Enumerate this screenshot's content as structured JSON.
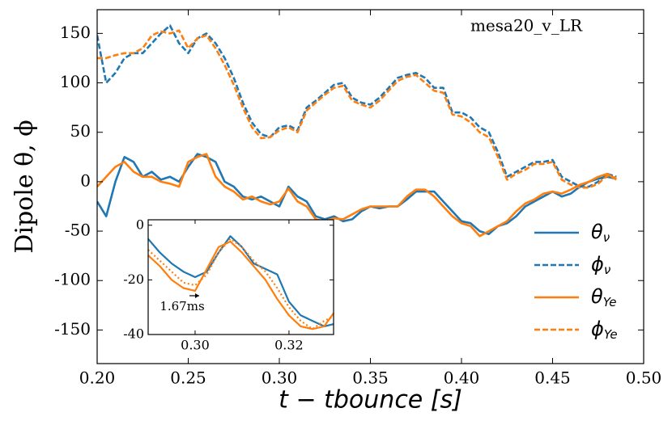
{
  "chart_data": [
    {
      "type": "line",
      "annotation": "mesa20_v_LR",
      "xlabel": "t − tbounce [s]",
      "ylabel": "Dipole θ, ϕ",
      "xlim": [
        0.2,
        0.5
      ],
      "ylim": [
        -184,
        174
      ],
      "xticks": [
        {
          "value": 0.2,
          "label": "0.20"
        },
        {
          "value": 0.25,
          "label": "0.25"
        },
        {
          "value": 0.3,
          "label": "0.30"
        },
        {
          "value": 0.35,
          "label": "0.35"
        },
        {
          "value": 0.4,
          "label": "0.40"
        },
        {
          "value": 0.45,
          "label": "0.45"
        },
        {
          "value": 0.5,
          "label": "0.50"
        }
      ],
      "yticks": [
        -150,
        -100,
        -50,
        0,
        50,
        100,
        150
      ],
      "legend": "lower right",
      "x": [
        0.2,
        0.205,
        0.21,
        0.215,
        0.22,
        0.225,
        0.23,
        0.235,
        0.24,
        0.245,
        0.25,
        0.255,
        0.26,
        0.265,
        0.27,
        0.275,
        0.28,
        0.285,
        0.29,
        0.295,
        0.3,
        0.305,
        0.31,
        0.315,
        0.32,
        0.325,
        0.33,
        0.335,
        0.34,
        0.345,
        0.35,
        0.355,
        0.36,
        0.365,
        0.37,
        0.375,
        0.38,
        0.385,
        0.39,
        0.395,
        0.4,
        0.405,
        0.41,
        0.415,
        0.42,
        0.425,
        0.43,
        0.435,
        0.44,
        0.445,
        0.45,
        0.455,
        0.46,
        0.465,
        0.47,
        0.475,
        0.48,
        0.485
      ],
      "series": [
        {
          "name": "θν",
          "color": "#1f77b4",
          "style": "solid",
          "values": [
            -20,
            -35,
            0,
            25,
            20,
            5,
            10,
            2,
            5,
            0,
            15,
            28,
            25,
            20,
            0,
            -5,
            -15,
            -18,
            -15,
            -20,
            -25,
            -5,
            -15,
            -20,
            -35,
            -38,
            -35,
            -40,
            -38,
            -30,
            -25,
            -27,
            -25,
            -25,
            -18,
            -10,
            -10,
            -10,
            -20,
            -30,
            -40,
            -42,
            -50,
            -53,
            -45,
            -42,
            -35,
            -25,
            -20,
            -15,
            -10,
            -15,
            -12,
            -5,
            0,
            3,
            5,
            3
          ]
        },
        {
          "name": "ϕν",
          "color": "#1f77b4",
          "style": "dashed",
          "values": [
            148,
            100,
            110,
            125,
            130,
            130,
            140,
            150,
            158,
            140,
            130,
            145,
            150,
            140,
            125,
            105,
            80,
            60,
            48,
            45,
            55,
            57,
            52,
            75,
            82,
            90,
            98,
            100,
            85,
            80,
            78,
            85,
            95,
            105,
            108,
            110,
            105,
            95,
            95,
            70,
            70,
            65,
            55,
            50,
            30,
            5,
            10,
            15,
            20,
            20,
            22,
            5,
            0,
            -5,
            -5,
            0,
            8,
            5
          ]
        },
        {
          "name": "θYe",
          "color": "#ff7f0e",
          "style": "solid",
          "values": [
            -5,
            5,
            15,
            20,
            10,
            5,
            5,
            0,
            -2,
            -5,
            20,
            25,
            28,
            5,
            -5,
            -10,
            -18,
            -15,
            -20,
            -23,
            -20,
            -7,
            -20,
            -25,
            -38,
            -40,
            -37,
            -38,
            -33,
            -28,
            -25,
            -25,
            -25,
            -25,
            -15,
            -8,
            -8,
            -15,
            -25,
            -35,
            -42,
            -45,
            -55,
            -50,
            -45,
            -40,
            -30,
            -22,
            -18,
            -12,
            -10,
            -12,
            -8,
            -3,
            0,
            5,
            8,
            2
          ]
        },
        {
          "name": "ϕYe",
          "color": "#ff7f0e",
          "style": "dashed",
          "values": [
            125,
            125,
            128,
            130,
            130,
            135,
            148,
            152,
            150,
            153,
            135,
            145,
            148,
            135,
            118,
            98,
            75,
            55,
            44,
            45,
            52,
            55,
            50,
            72,
            80,
            88,
            95,
            97,
            82,
            78,
            75,
            82,
            92,
            102,
            106,
            108,
            100,
            92,
            90,
            68,
            66,
            60,
            50,
            45,
            25,
            2,
            8,
            12,
            18,
            18,
            20,
            2,
            -3,
            -6,
            -6,
            -2,
            6,
            4
          ]
        }
      ]
    },
    {
      "type": "line",
      "annotation": "1.67ms",
      "xlim": [
        0.29,
        0.3295
      ],
      "ylim": [
        -40,
        2
      ],
      "xticks": [
        {
          "value": 0.3,
          "label": "0.30"
        },
        0.32
      ],
      "yticks": [
        0,
        -20,
        -40
      ],
      "x": [
        0.29,
        0.2925,
        0.295,
        0.2975,
        0.3,
        0.3025,
        0.305,
        0.3075,
        0.31,
        0.3125,
        0.315,
        0.3175,
        0.32,
        0.3225,
        0.325,
        0.3275,
        0.33
      ],
      "series": [
        {
          "color": "#1f77b4",
          "style": "solid",
          "values": [
            -5,
            -10,
            -14,
            -17,
            -19,
            -17,
            -10,
            -4,
            -8,
            -14,
            -16,
            -18,
            -28,
            -33,
            -35,
            -37,
            -36
          ]
        },
        {
          "color": "#ff7f0e",
          "style": "solid",
          "values": [
            -11,
            -15,
            -20,
            -23,
            -24,
            -16,
            -8,
            -6,
            -10,
            -15,
            -20,
            -27,
            -33,
            -37,
            -38,
            -37,
            -31
          ]
        },
        {
          "color": "#ff7f0e",
          "style": "dotted",
          "values": [
            -9,
            -13,
            -17,
            -21,
            -22,
            -18,
            -10,
            -5,
            -8,
            -13,
            -17,
            -23,
            -30,
            -35,
            -38,
            -35,
            -33
          ]
        }
      ]
    }
  ]
}
